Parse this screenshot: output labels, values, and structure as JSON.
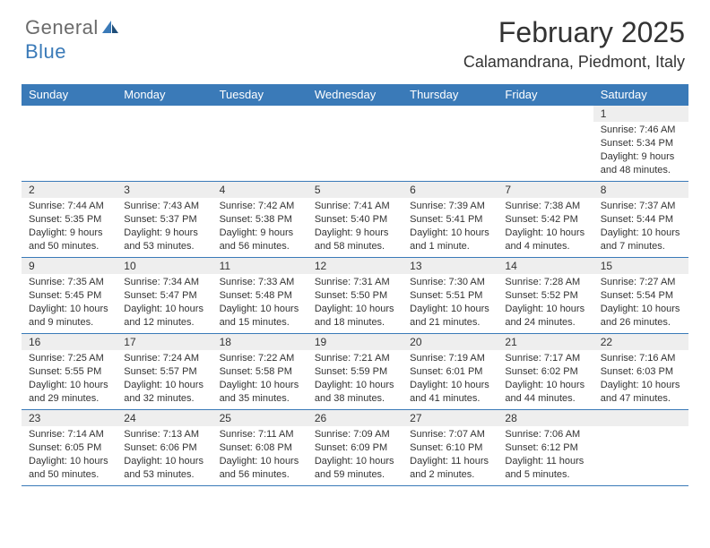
{
  "brand": {
    "part1": "General",
    "part2": "Blue"
  },
  "title": "February 2025",
  "location": "Calamandrana, Piedmont, Italy",
  "header_bg": "#3a7ab8",
  "day_headers": [
    "Sunday",
    "Monday",
    "Tuesday",
    "Wednesday",
    "Thursday",
    "Friday",
    "Saturday"
  ],
  "weeks": [
    {
      "nums": [
        "",
        "",
        "",
        "",
        "",
        "",
        "1"
      ],
      "info": [
        "",
        "",
        "",
        "",
        "",
        "",
        "Sunrise: 7:46 AM\nSunset: 5:34 PM\nDaylight: 9 hours and 48 minutes."
      ]
    },
    {
      "nums": [
        "2",
        "3",
        "4",
        "5",
        "6",
        "7",
        "8"
      ],
      "info": [
        "Sunrise: 7:44 AM\nSunset: 5:35 PM\nDaylight: 9 hours and 50 minutes.",
        "Sunrise: 7:43 AM\nSunset: 5:37 PM\nDaylight: 9 hours and 53 minutes.",
        "Sunrise: 7:42 AM\nSunset: 5:38 PM\nDaylight: 9 hours and 56 minutes.",
        "Sunrise: 7:41 AM\nSunset: 5:40 PM\nDaylight: 9 hours and 58 minutes.",
        "Sunrise: 7:39 AM\nSunset: 5:41 PM\nDaylight: 10 hours and 1 minute.",
        "Sunrise: 7:38 AM\nSunset: 5:42 PM\nDaylight: 10 hours and 4 minutes.",
        "Sunrise: 7:37 AM\nSunset: 5:44 PM\nDaylight: 10 hours and 7 minutes."
      ]
    },
    {
      "nums": [
        "9",
        "10",
        "11",
        "12",
        "13",
        "14",
        "15"
      ],
      "info": [
        "Sunrise: 7:35 AM\nSunset: 5:45 PM\nDaylight: 10 hours and 9 minutes.",
        "Sunrise: 7:34 AM\nSunset: 5:47 PM\nDaylight: 10 hours and 12 minutes.",
        "Sunrise: 7:33 AM\nSunset: 5:48 PM\nDaylight: 10 hours and 15 minutes.",
        "Sunrise: 7:31 AM\nSunset: 5:50 PM\nDaylight: 10 hours and 18 minutes.",
        "Sunrise: 7:30 AM\nSunset: 5:51 PM\nDaylight: 10 hours and 21 minutes.",
        "Sunrise: 7:28 AM\nSunset: 5:52 PM\nDaylight: 10 hours and 24 minutes.",
        "Sunrise: 7:27 AM\nSunset: 5:54 PM\nDaylight: 10 hours and 26 minutes."
      ]
    },
    {
      "nums": [
        "16",
        "17",
        "18",
        "19",
        "20",
        "21",
        "22"
      ],
      "info": [
        "Sunrise: 7:25 AM\nSunset: 5:55 PM\nDaylight: 10 hours and 29 minutes.",
        "Sunrise: 7:24 AM\nSunset: 5:57 PM\nDaylight: 10 hours and 32 minutes.",
        "Sunrise: 7:22 AM\nSunset: 5:58 PM\nDaylight: 10 hours and 35 minutes.",
        "Sunrise: 7:21 AM\nSunset: 5:59 PM\nDaylight: 10 hours and 38 minutes.",
        "Sunrise: 7:19 AM\nSunset: 6:01 PM\nDaylight: 10 hours and 41 minutes.",
        "Sunrise: 7:17 AM\nSunset: 6:02 PM\nDaylight: 10 hours and 44 minutes.",
        "Sunrise: 7:16 AM\nSunset: 6:03 PM\nDaylight: 10 hours and 47 minutes."
      ]
    },
    {
      "nums": [
        "23",
        "24",
        "25",
        "26",
        "27",
        "28",
        ""
      ],
      "info": [
        "Sunrise: 7:14 AM\nSunset: 6:05 PM\nDaylight: 10 hours and 50 minutes.",
        "Sunrise: 7:13 AM\nSunset: 6:06 PM\nDaylight: 10 hours and 53 minutes.",
        "Sunrise: 7:11 AM\nSunset: 6:08 PM\nDaylight: 10 hours and 56 minutes.",
        "Sunrise: 7:09 AM\nSunset: 6:09 PM\nDaylight: 10 hours and 59 minutes.",
        "Sunrise: 7:07 AM\nSunset: 6:10 PM\nDaylight: 11 hours and 2 minutes.",
        "Sunrise: 7:06 AM\nSunset: 6:12 PM\nDaylight: 11 hours and 5 minutes.",
        ""
      ]
    }
  ]
}
